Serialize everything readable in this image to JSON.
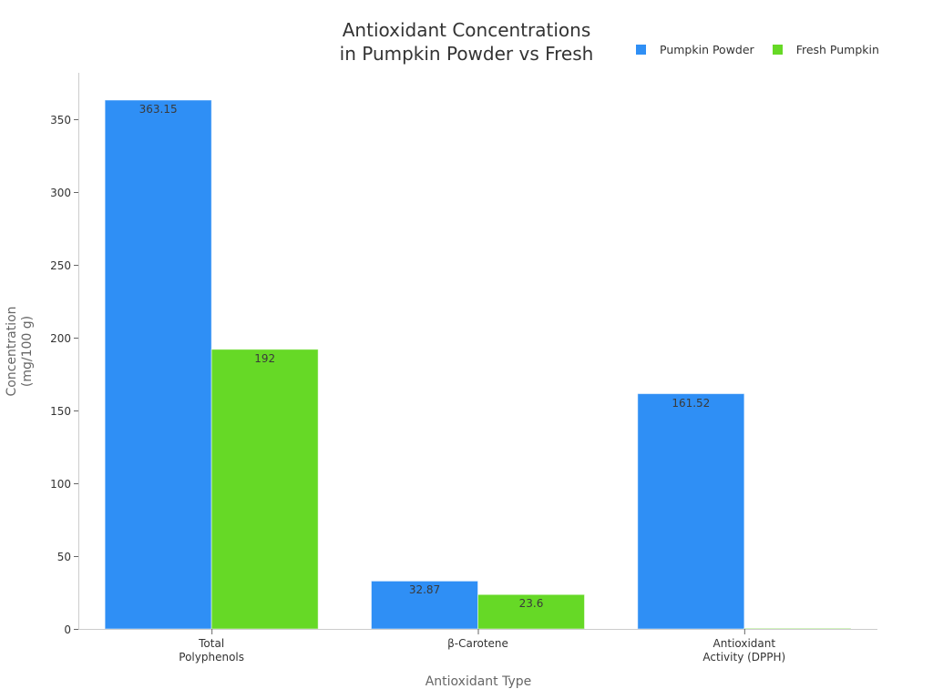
{
  "chart_data": {
    "type": "bar",
    "title": "Antioxidant Concentrations\nin Pumpkin Powder vs Fresh",
    "title_lines": [
      "Antioxidant Concentrations",
      "in Pumpkin Powder vs Fresh"
    ],
    "xlabel": "Antioxidant Type",
    "ylabel": "Concentration (mg/100 g)",
    "ylabel_lines": [
      "Concentration",
      "(mg/100 g)"
    ],
    "categories": [
      "Total Polyphenols",
      "β-Carotene",
      "Antioxidant Activity (DPPH)"
    ],
    "category_labels": [
      "Total\nPolyphenols",
      "β-Carotene",
      "Antioxidant\nActivity (DPPH)"
    ],
    "series": [
      {
        "name": "Pumpkin Powder",
        "color": "#2f8ff5",
        "values": [
          363.15,
          32.87,
          161.52
        ]
      },
      {
        "name": "Fresh Pumpkin",
        "color": "#66d926",
        "values": [
          192,
          23.6,
          0
        ]
      }
    ],
    "data_labels": [
      [
        "363.15",
        "32.87",
        "161.52"
      ],
      [
        "192",
        "23.6",
        ""
      ]
    ],
    "yticks": [
      0,
      50,
      100,
      150,
      200,
      250,
      300,
      350
    ],
    "ylim": [
      0,
      381
    ],
    "grid": false,
    "legend_position": "top-right"
  }
}
